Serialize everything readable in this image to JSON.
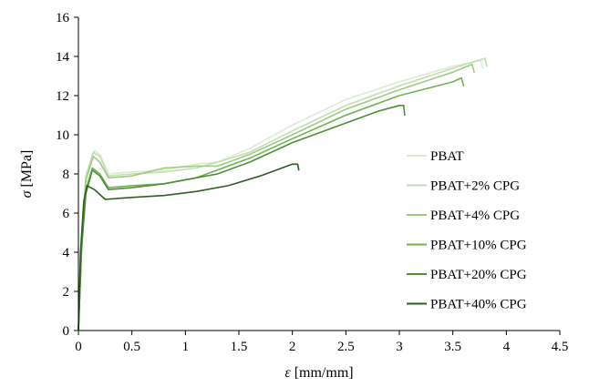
{
  "chart_data": {
    "type": "line",
    "xlabel_symbol": "ε",
    "xlabel_unit": " [mm/mm]",
    "ylabel_symbol": "σ",
    "ylabel_unit": " [MPa]",
    "xlim": [
      0,
      4.5
    ],
    "ylim": [
      0,
      16
    ],
    "xticks": [
      0,
      0.5,
      1,
      1.5,
      2,
      2.5,
      3,
      3.5,
      4,
      4.5
    ],
    "xtick_labels": [
      "0",
      "0.5",
      "1",
      "1.5",
      "2",
      "2.5",
      "3",
      "3.5",
      "4",
      "4.5"
    ],
    "yticks": [
      0,
      2,
      4,
      6,
      8,
      10,
      12,
      14,
      16
    ],
    "ytick_labels": [
      "0",
      "2",
      "4",
      "6",
      "8",
      "10",
      "12",
      "14",
      "16"
    ],
    "grid": false,
    "legend_position": "right",
    "series": [
      {
        "name": "PBAT",
        "color": "#dcebd2",
        "points": [
          [
            0,
            0
          ],
          [
            0.03,
            4.5
          ],
          [
            0.07,
            7.8
          ],
          [
            0.15,
            9.2
          ],
          [
            0.2,
            9.0
          ],
          [
            0.28,
            8.0
          ],
          [
            0.5,
            8.1
          ],
          [
            0.8,
            8.2
          ],
          [
            1.1,
            8.5
          ],
          [
            1.3,
            8.6
          ],
          [
            1.6,
            9.3
          ],
          [
            2.0,
            10.5
          ],
          [
            2.5,
            11.8
          ],
          [
            3.0,
            12.7
          ],
          [
            3.5,
            13.5
          ],
          [
            3.76,
            13.8
          ],
          [
            3.78,
            13.4
          ]
        ]
      },
      {
        "name": "PBAT+2% CPG",
        "color": "#c2ddb0",
        "points": [
          [
            0,
            0
          ],
          [
            0.03,
            4.6
          ],
          [
            0.07,
            7.9
          ],
          [
            0.14,
            9.1
          ],
          [
            0.2,
            8.9
          ],
          [
            0.28,
            7.9
          ],
          [
            0.5,
            8.0
          ],
          [
            0.8,
            8.1
          ],
          [
            1.1,
            8.3
          ],
          [
            1.3,
            8.6
          ],
          [
            1.6,
            9.1
          ],
          [
            2.0,
            10.2
          ],
          [
            2.5,
            11.5
          ],
          [
            3.0,
            12.5
          ],
          [
            3.5,
            13.4
          ],
          [
            3.8,
            13.9
          ],
          [
            3.82,
            13.5
          ]
        ]
      },
      {
        "name": "PBAT+4% CPG",
        "color": "#9ccc82",
        "points": [
          [
            0,
            0
          ],
          [
            0.03,
            4.5
          ],
          [
            0.07,
            7.7
          ],
          [
            0.14,
            8.9
          ],
          [
            0.2,
            8.6
          ],
          [
            0.28,
            7.8
          ],
          [
            0.5,
            7.9
          ],
          [
            0.8,
            8.3
          ],
          [
            1.1,
            8.4
          ],
          [
            1.3,
            8.4
          ],
          [
            1.6,
            9.0
          ],
          [
            2.0,
            10.0
          ],
          [
            2.5,
            11.3
          ],
          [
            3.0,
            12.3
          ],
          [
            3.5,
            13.2
          ],
          [
            3.68,
            13.6
          ],
          [
            3.7,
            13.2
          ]
        ]
      },
      {
        "name": "PBAT+10% CPG",
        "color": "#70b152",
        "points": [
          [
            0,
            0
          ],
          [
            0.03,
            4.3
          ],
          [
            0.07,
            7.2
          ],
          [
            0.13,
            8.3
          ],
          [
            0.2,
            8.0
          ],
          [
            0.28,
            7.3
          ],
          [
            0.5,
            7.4
          ],
          [
            0.8,
            7.5
          ],
          [
            1.1,
            7.8
          ],
          [
            1.3,
            8.2
          ],
          [
            1.6,
            8.8
          ],
          [
            2.0,
            9.8
          ],
          [
            2.5,
            11.0
          ],
          [
            3.0,
            12.0
          ],
          [
            3.5,
            12.7
          ],
          [
            3.58,
            12.9
          ],
          [
            3.6,
            12.5
          ]
        ]
      },
      {
        "name": "PBAT+20% CPG",
        "color": "#4d8f35",
        "points": [
          [
            0,
            0
          ],
          [
            0.03,
            4.2
          ],
          [
            0.07,
            7.0
          ],
          [
            0.13,
            8.2
          ],
          [
            0.2,
            7.9
          ],
          [
            0.28,
            7.2
          ],
          [
            0.5,
            7.3
          ],
          [
            0.8,
            7.5
          ],
          [
            1.1,
            7.8
          ],
          [
            1.3,
            8.0
          ],
          [
            1.6,
            8.6
          ],
          [
            2.0,
            9.6
          ],
          [
            2.5,
            10.6
          ],
          [
            2.8,
            11.2
          ],
          [
            3.0,
            11.5
          ],
          [
            3.04,
            11.5
          ],
          [
            3.05,
            11.0
          ]
        ]
      },
      {
        "name": "PBAT+40% CPG",
        "color": "#2e5e22",
        "points": [
          [
            0,
            0
          ],
          [
            0.02,
            4.0
          ],
          [
            0.05,
            6.6
          ],
          [
            0.08,
            7.4
          ],
          [
            0.15,
            7.2
          ],
          [
            0.25,
            6.7
          ],
          [
            0.5,
            6.8
          ],
          [
            0.8,
            6.9
          ],
          [
            1.1,
            7.1
          ],
          [
            1.4,
            7.4
          ],
          [
            1.7,
            7.9
          ],
          [
            2.0,
            8.5
          ],
          [
            2.05,
            8.5
          ],
          [
            2.06,
            8.2
          ]
        ]
      }
    ]
  }
}
